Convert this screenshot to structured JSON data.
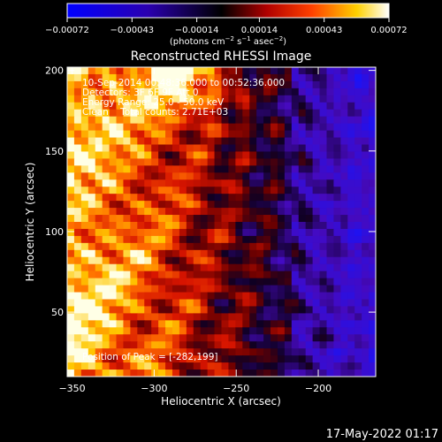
{
  "chart_data": {
    "type": "heatmap",
    "title": "Reconstructed RHESSI Image",
    "xlabel": "Heliocentric X (arcsec)",
    "ylabel": "Heliocentric Y (arcsec)",
    "xlim": [
      -353,
      -165
    ],
    "ylim": [
      10,
      202
    ],
    "x_ticks": [
      -350,
      -300,
      -250,
      -200
    ],
    "x_tick_labels": [
      "−350",
      "−300",
      "−250",
      "−200"
    ],
    "y_ticks": [
      50,
      100,
      150,
      200
    ],
    "y_tick_labels": [
      "50",
      "100",
      "150",
      "200"
    ],
    "colorbar": {
      "min": -0.00072,
      "max": 0.00072,
      "tick_values": [
        -0.00072,
        -0.00043,
        -0.00014,
        0.00014,
        0.00043,
        0.00072
      ],
      "tick_labels": [
        "−0.00072",
        "−0.00043",
        "−0.00014",
        "0.00014",
        "0.00043",
        "0.00072"
      ],
      "unit_prefix": "(photons cm",
      "unit_exp1": "−2",
      "unit_mid": " s",
      "unit_exp2": "−1",
      "unit_mid2": " asec",
      "unit_exp3": "−2",
      "unit_suffix": ")",
      "colormap": [
        "#0000ff",
        "#000000",
        "#ff0000",
        "#ffff00",
        "#ffffff"
      ]
    },
    "annotations": {
      "line1": "10-Sep-2014 00:48:36.000 to 00:52:36.000",
      "line2": "Detectors: 3F 6F 9F  Att 0",
      "line3": "Energy Range: 25.0 - 50.0 keV",
      "line4": "Clean    Total counts: 2.71E+03",
      "peak": "Position of Peak = [-282,199]"
    },
    "peak_position": [
      -282,
      199
    ],
    "colors": {
      "background": "#000000",
      "text": "#ffffff"
    }
  },
  "footer": {
    "timestamp": "17-May-2022 01:17"
  }
}
